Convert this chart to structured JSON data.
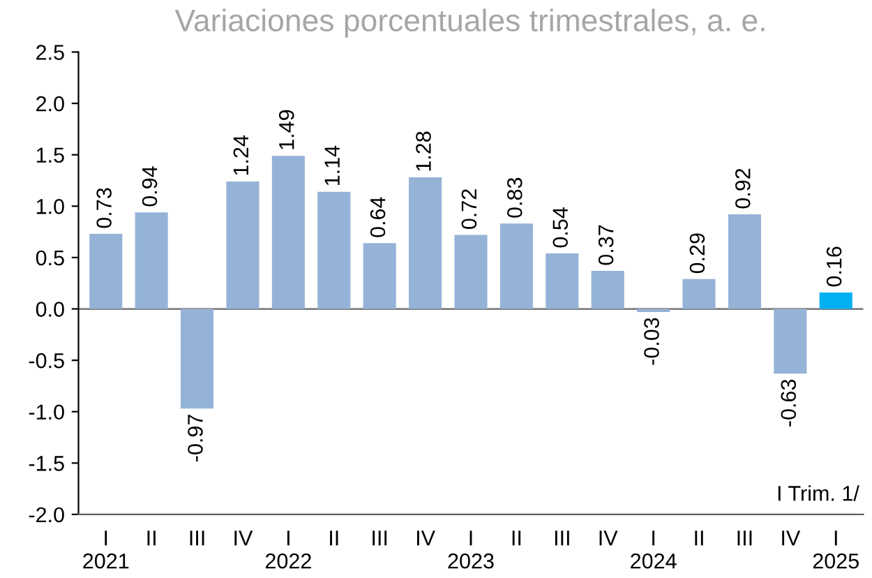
{
  "chart_data": {
    "type": "bar",
    "title": "Variaciones porcentuales trimestrales, a. e.",
    "categories": [
      "I\n2021",
      "II",
      "III",
      "IV",
      "I\n2022",
      "II",
      "III",
      "IV",
      "I\n2023",
      "II",
      "III",
      "IV",
      "I\n2024",
      "II",
      "III",
      "IV",
      "I\n2025"
    ],
    "values": [
      0.73,
      0.94,
      -0.97,
      1.24,
      1.49,
      1.14,
      0.64,
      1.28,
      0.72,
      0.83,
      0.54,
      0.37,
      -0.03,
      0.29,
      0.92,
      -0.63,
      0.16
    ],
    "colors": [
      "#95b3d7",
      "#95b3d7",
      "#95b3d7",
      "#95b3d7",
      "#95b3d7",
      "#95b3d7",
      "#95b3d7",
      "#95b3d7",
      "#95b3d7",
      "#95b3d7",
      "#95b3d7",
      "#95b3d7",
      "#95b3d7",
      "#95b3d7",
      "#95b3d7",
      "#95b3d7",
      "#00b0f0"
    ],
    "ylim": [
      -2.0,
      2.5
    ],
    "yticks": [
      {
        "value": -2.0,
        "label": "-2.0"
      },
      {
        "value": -1.5,
        "label": "-1.5"
      },
      {
        "value": -1.0,
        "label": "-1.0"
      },
      {
        "value": -0.5,
        "label": "-0.5"
      },
      {
        "value": 0.0,
        "label": "0.0"
      },
      {
        "value": 0.5,
        "label": "0.5"
      },
      {
        "value": 1.0,
        "label": "1.0"
      },
      {
        "value": 1.5,
        "label": "1.5"
      },
      {
        "value": 2.0,
        "label": "2.0"
      },
      {
        "value": 2.5,
        "label": "2.5"
      }
    ],
    "data_labels": true,
    "ref_lines": [
      {
        "axis": "y",
        "value": 0.0,
        "color": "#808080"
      }
    ],
    "annotations": [
      "I Trim. 1/"
    ]
  }
}
